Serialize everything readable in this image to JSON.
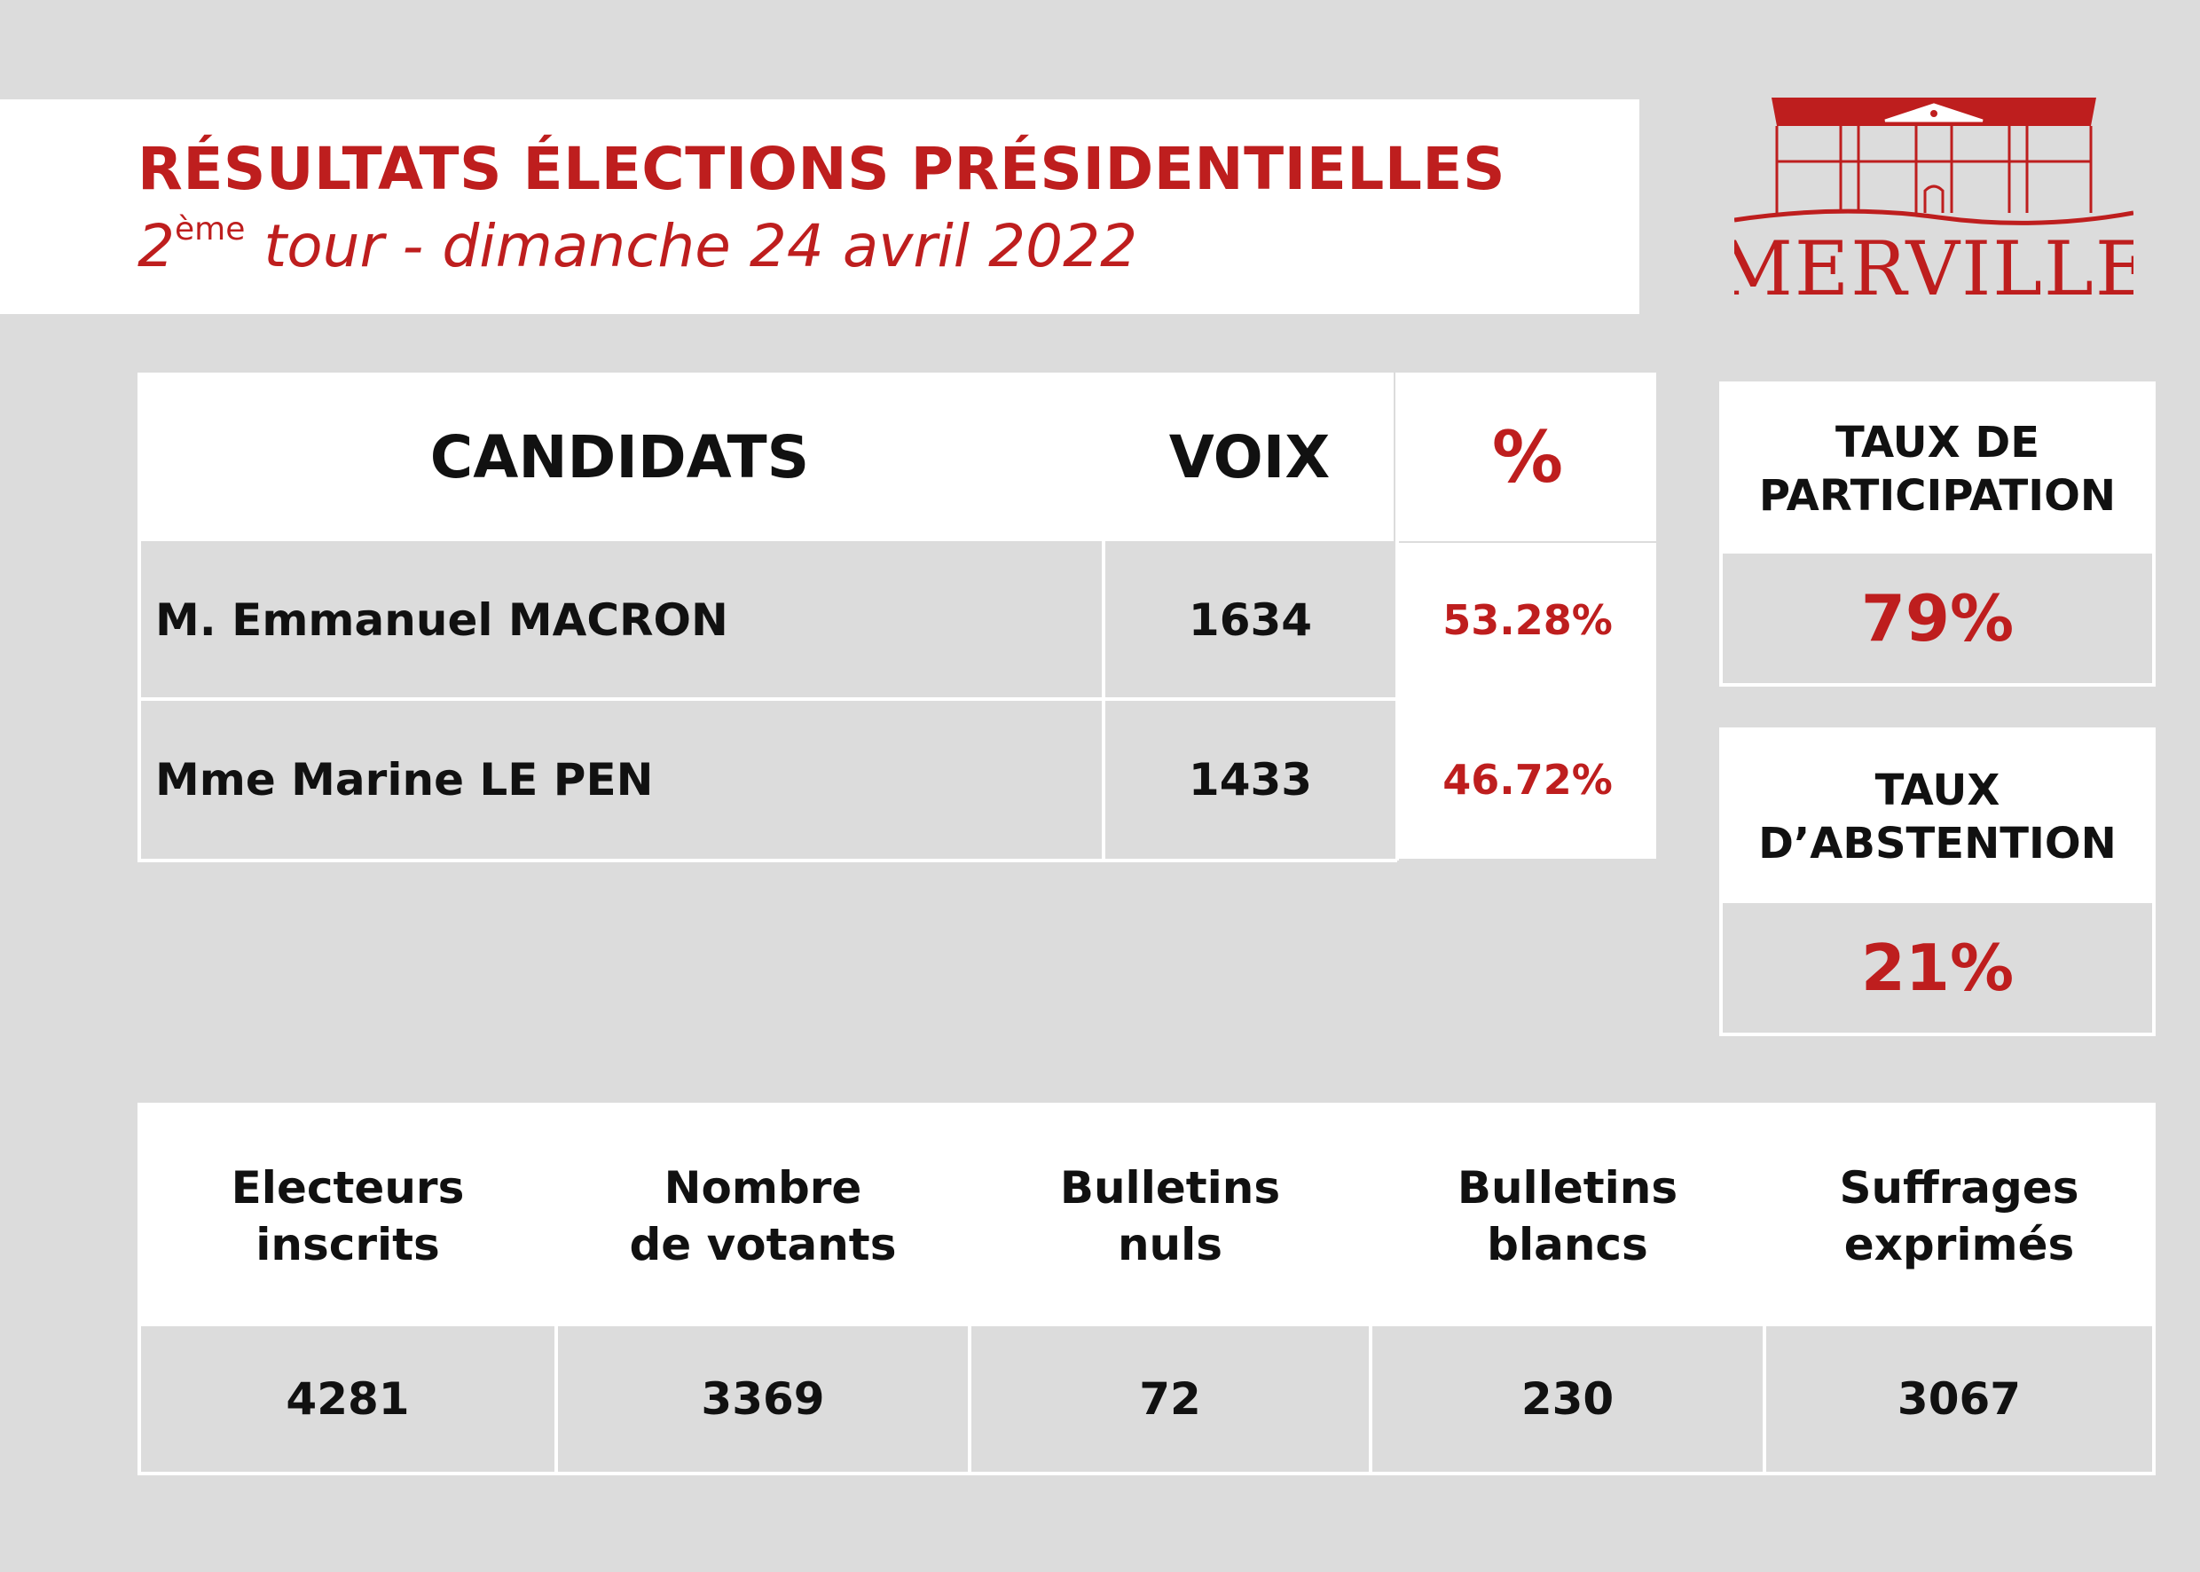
{
  "banner": {
    "title": "RÉSULTATS ÉLECTIONS PRÉSIDENTIELLES",
    "subtitle_num": "2",
    "subtitle_sup": "ème",
    "subtitle_rest": " tour - dimanche 24 avril 2022"
  },
  "logo": {
    "text": "MERVILLE"
  },
  "candidates": {
    "headers": {
      "name": "CANDIDATS",
      "votes": "VOIX",
      "pct": "%"
    },
    "rows": [
      {
        "name": "M. Emmanuel MACRON",
        "votes": "1634",
        "pct": "53.28%"
      },
      {
        "name": "Mme Marine LE PEN",
        "votes": "1433",
        "pct": "46.72%"
      }
    ]
  },
  "participation": {
    "label_line1": "TAUX DE",
    "label_line2": "PARTICIPATION",
    "value": "79%"
  },
  "abstention": {
    "label_line1": "TAUX",
    "label_line2": "D’ABSTENTION",
    "value": "21%"
  },
  "stats": [
    {
      "line1": "Electeurs",
      "line2": "inscrits",
      "value": "4281"
    },
    {
      "line1": "Nombre",
      "line2": "de votants",
      "value": "3369"
    },
    {
      "line1": "Bulletins",
      "line2": "nuls",
      "value": "72"
    },
    {
      "line1": "Bulletins",
      "line2": "blancs",
      "value": "230"
    },
    {
      "line1": "Suffrages",
      "line2": "exprimés",
      "value": "3067"
    }
  ],
  "colors": {
    "accent": "#be1e1e",
    "background": "#dcdcdc",
    "panel": "#ffffff"
  }
}
